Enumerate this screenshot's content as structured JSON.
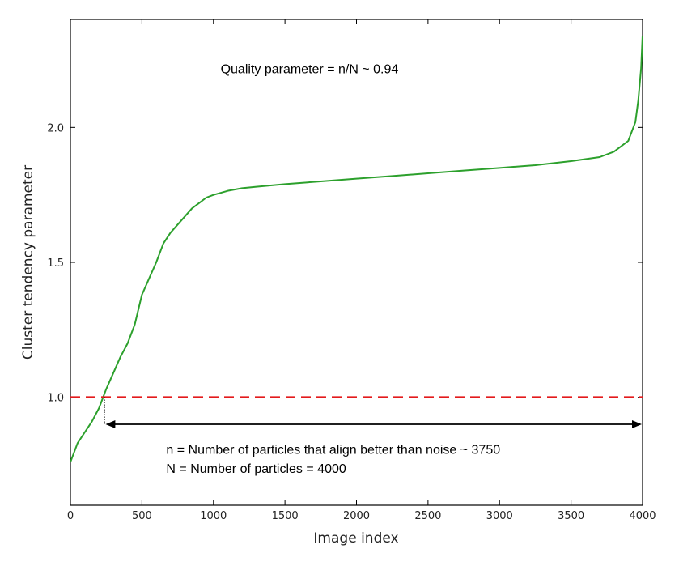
{
  "chart_data": {
    "type": "line",
    "title": "",
    "xlabel": "Image index",
    "ylabel": "Cluster tendency parameter",
    "xlim": [
      0,
      4000
    ],
    "ylim": [
      0.6,
      2.4
    ],
    "x_ticks": [
      0,
      500,
      1000,
      1500,
      2000,
      2500,
      3000,
      3500,
      4000
    ],
    "x_tick_labels": [
      "0",
      "500",
      "1000",
      "1500",
      "2000",
      "2500",
      "3000",
      "3500",
      "4000"
    ],
    "y_ticks": [
      1.0,
      1.5,
      2.0
    ],
    "y_tick_labels": [
      "1.0",
      "1.5",
      "2.0"
    ],
    "grid": false,
    "series": [
      {
        "color": "#2ca02c",
        "style": "solid",
        "x": [
          0,
          50,
          100,
          150,
          200,
          250,
          300,
          350,
          400,
          450,
          500,
          550,
          600,
          650,
          700,
          750,
          800,
          850,
          900,
          950,
          1000,
          1100,
          1200,
          1300,
          1400,
          1500,
          1750,
          2000,
          2250,
          2500,
          2750,
          3000,
          3250,
          3500,
          3700,
          3800,
          3850,
          3900,
          3950,
          3970,
          3990,
          4000
        ],
        "y": [
          0.76,
          0.83,
          0.87,
          0.91,
          0.96,
          1.03,
          1.09,
          1.15,
          1.2,
          1.27,
          1.38,
          1.44,
          1.5,
          1.57,
          1.61,
          1.64,
          1.67,
          1.7,
          1.72,
          1.74,
          1.75,
          1.765,
          1.775,
          1.78,
          1.785,
          1.79,
          1.8,
          1.81,
          1.82,
          1.83,
          1.84,
          1.85,
          1.86,
          1.875,
          1.89,
          1.91,
          1.93,
          1.95,
          2.02,
          2.1,
          2.22,
          2.34
        ]
      },
      {
        "color": "#e31a1c",
        "style": "dashed",
        "x": [
          0,
          4000
        ],
        "y": [
          1.0,
          1.0
        ]
      }
    ],
    "annotations": [
      {
        "text": "Quality parameter = n/N ~ 0.94",
        "x": 1050,
        "y": 2.2
      },
      {
        "text": "n = Number of particles that align better than noise ~ 3750",
        "x": 670,
        "y": 0.79
      },
      {
        "text": "N = Number of particles = 4000",
        "x": 670,
        "y": 0.72
      }
    ],
    "double_arrow": {
      "x_start": 240,
      "x_end": 4000,
      "y": 0.9
    },
    "dotted_marker": {
      "x": 240,
      "y_from": 1.0,
      "y_to": 0.9
    }
  }
}
